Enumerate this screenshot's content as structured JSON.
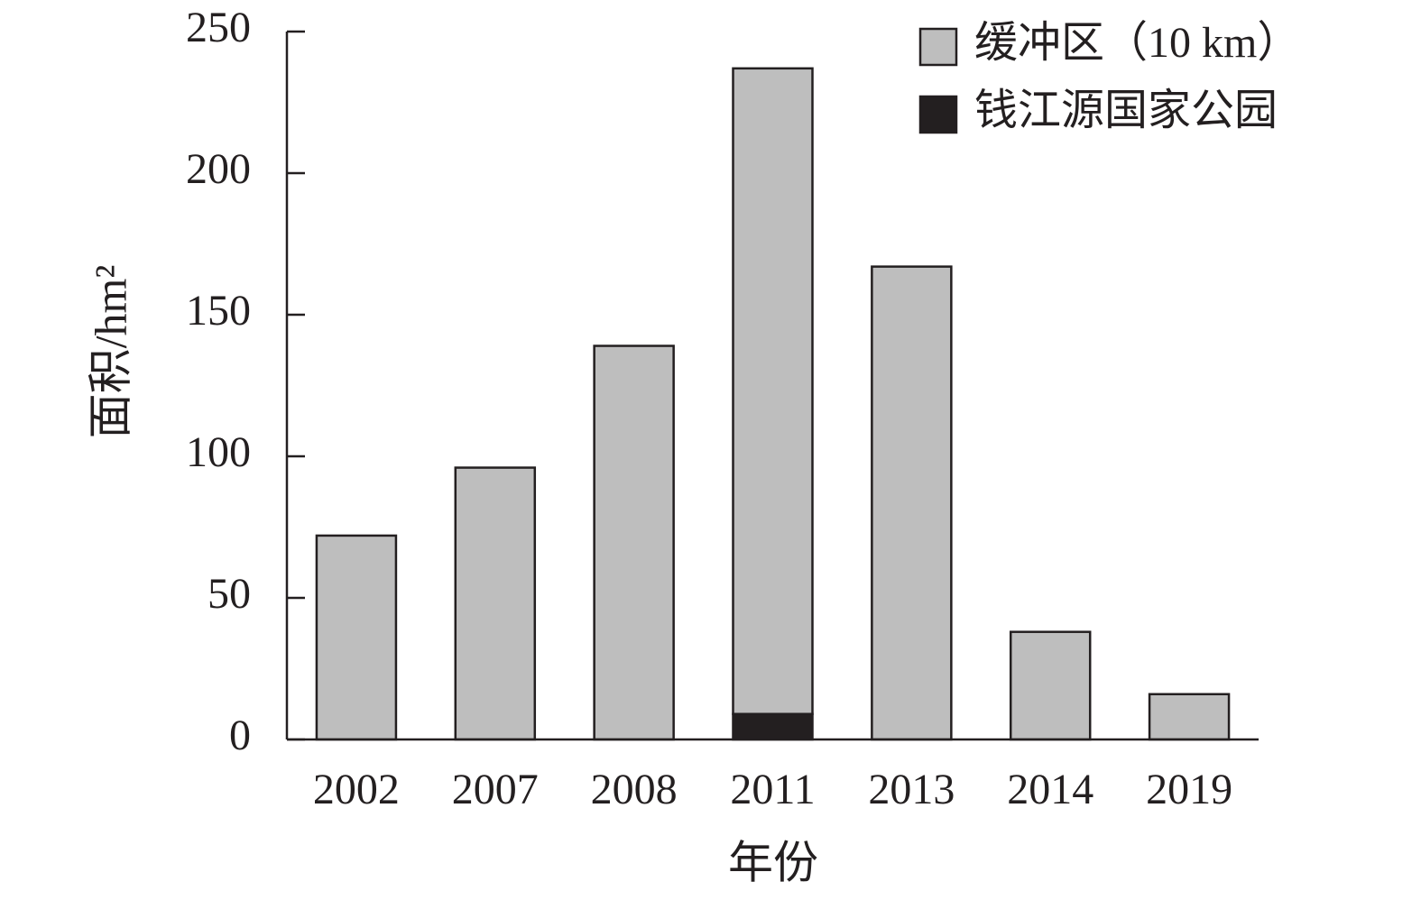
{
  "chart_data": {
    "type": "stacked_bar",
    "x_label": "年份",
    "y_label": "面积/hm²",
    "categories": [
      "2002",
      "2007",
      "2008",
      "2011",
      "2013",
      "2014",
      "2019"
    ],
    "series": [
      {
        "name": "缓冲区（10 km）",
        "color": "#bebebe",
        "values": [
          72,
          96,
          139,
          228,
          167,
          38,
          16
        ]
      },
      {
        "name": "钱江源国家公园",
        "color": "#231f20",
        "values": [
          0,
          0,
          0,
          9,
          0,
          0,
          0
        ]
      }
    ],
    "ylim": [
      0,
      250
    ],
    "yticks": [
      0,
      50,
      100,
      150,
      200,
      250
    ],
    "legend": "upper right"
  }
}
